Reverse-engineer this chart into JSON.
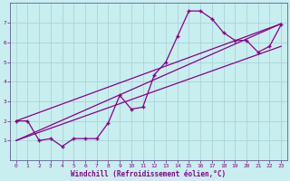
{
  "xlabel": "Windchill (Refroidissement éolien,°C)",
  "background_color": "#c8eef0",
  "grid_color": "#a8d4d8",
  "line_color": "#880088",
  "x_data": [
    0,
    1,
    2,
    3,
    4,
    5,
    6,
    7,
    8,
    9,
    10,
    11,
    12,
    13,
    14,
    15,
    16,
    17,
    18,
    19,
    20,
    21,
    22,
    23
  ],
  "y_scatter": [
    2.0,
    2.0,
    1.0,
    1.1,
    0.7,
    1.1,
    1.1,
    1.1,
    1.9,
    3.3,
    2.6,
    2.7,
    4.35,
    5.0,
    6.3,
    7.6,
    7.6,
    7.2,
    6.5,
    6.1,
    6.1,
    5.5,
    5.8,
    6.9
  ],
  "line1_x": [
    0,
    23
  ],
  "line1_y": [
    2.0,
    6.95
  ],
  "line2_x": [
    0,
    23
  ],
  "line2_y": [
    1.0,
    6.95
  ],
  "line3_x": [
    0,
    23
  ],
  "line3_y": [
    1.0,
    5.8
  ],
  "xlim": [
    -0.5,
    23.5
  ],
  "ylim": [
    0,
    8
  ],
  "yticks": [
    1,
    2,
    3,
    4,
    5,
    6,
    7
  ],
  "xticks": [
    0,
    1,
    2,
    3,
    4,
    5,
    6,
    7,
    8,
    9,
    10,
    11,
    12,
    13,
    14,
    15,
    16,
    17,
    18,
    19,
    20,
    21,
    22,
    23
  ]
}
